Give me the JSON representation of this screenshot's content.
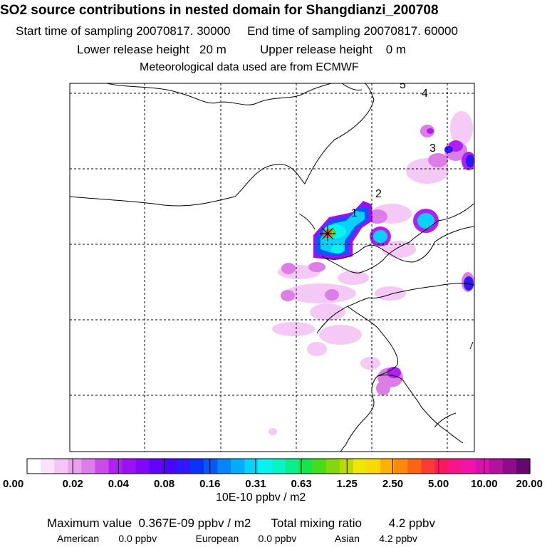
{
  "header": {
    "title": "SO2 source contributions in nested domain for Shangdianzi_200708",
    "sampling_line": "Start time of sampling 20070817. 30000     End time of sampling 20070817. 60000",
    "release_line": "Lower release height   20 m          Upper release height    0 m",
    "met_line": "Meteorological data used are from ECMWF"
  },
  "chart_data": {
    "type": "heatmap",
    "title": "SO2 source contributions in nested domain for Shangdianzi_200708",
    "start_time": "20070817. 30000",
    "end_time": "20070817. 60000",
    "lower_release_height": "20 m",
    "upper_release_height": "0 m",
    "met_source": "ECMWF",
    "colorbar": {
      "unit": "10E-10 ppbv / m2",
      "tick_labels": [
        "0.00",
        "0.02",
        "0.04",
        "0.08",
        "0.16",
        "0.31",
        "0.63",
        "1.25",
        "2.50",
        "5.00",
        "10.00",
        "20.00"
      ],
      "colors": [
        "#ffffff",
        "#fbe2fb",
        "#f4c4f4",
        "#eaa2ee",
        "#dd7de8",
        "#c84ce8",
        "#b020f0",
        "#9c10f4",
        "#8008f8",
        "#6204fa",
        "#4a06fa",
        "#3018f8",
        "#0a32f8",
        "#0658fa",
        "#0684fa",
        "#06acfa",
        "#08d2fa",
        "#08f2f2",
        "#08f4c4",
        "#08f08a",
        "#16e44c",
        "#48dc18",
        "#82d808",
        "#bcd808",
        "#eee608",
        "#fcd808",
        "#fcb008",
        "#fc8a08",
        "#fc6414",
        "#fc3c34",
        "#fc1860",
        "#f8148a",
        "#f014a8",
        "#da10b0",
        "#b610a0",
        "#8e0c8a",
        "#640870"
      ]
    },
    "source_marker": "Shangdianzi",
    "trajectory_labels": [
      "1",
      "2",
      "3",
      "4",
      "5"
    ],
    "footer": {
      "max_label": "Maximum value",
      "max_value": "0.367E-09 ppbv / m2",
      "total_label": "Total mixing ratio",
      "total_value": "4.2 ppbv",
      "regions": [
        {
          "name": "American",
          "value": "0.0 ppbv"
        },
        {
          "name": "European",
          "value": "0.0 ppbv"
        },
        {
          "name": "Asian",
          "value": "4.2 ppbv"
        }
      ]
    }
  }
}
